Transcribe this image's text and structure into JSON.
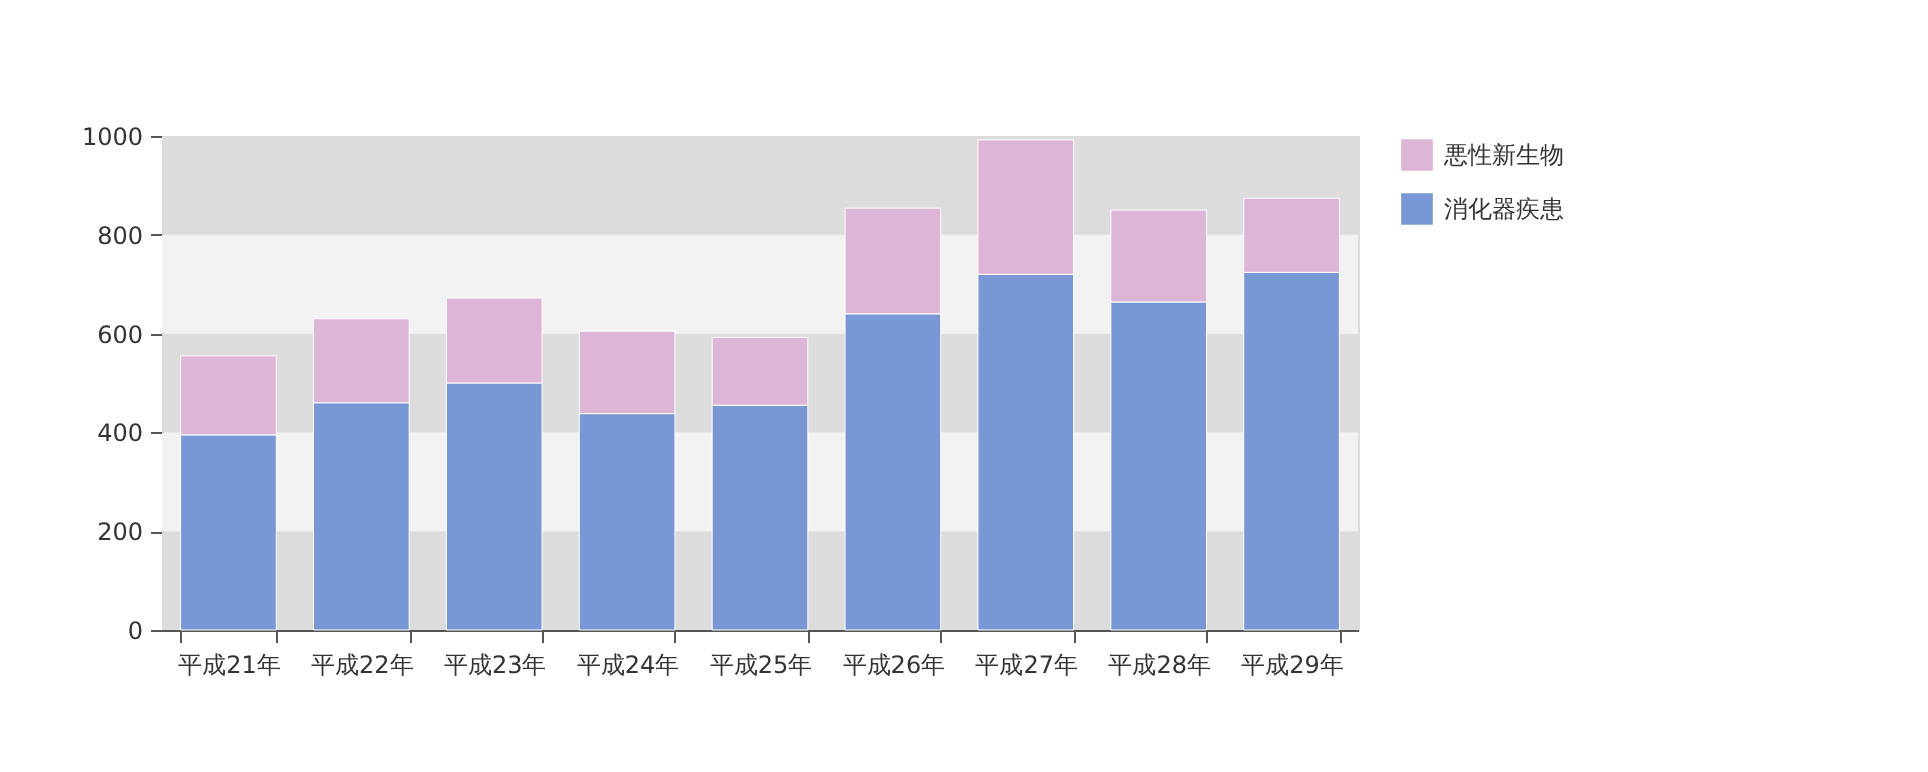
{
  "chart_data": {
    "type": "bar",
    "stacked": true,
    "categories": [
      "平成21年",
      "平成22年",
      "平成23年",
      "平成24年",
      "平成25年",
      "平成26年",
      "平成27年",
      "平成28年",
      "平成29年"
    ],
    "series": [
      {
        "name": "消化器疾患",
        "color": "#7897d4",
        "values": [
          395,
          460,
          500,
          438,
          455,
          640,
          720,
          664,
          724
        ]
      },
      {
        "name": "悪性新生物",
        "color": "#ddb5d6",
        "values": [
          160,
          170,
          172,
          167,
          137,
          214,
          272,
          186,
          150
        ]
      }
    ],
    "ylim": [
      0,
      1000
    ],
    "yticks": [
      0,
      200,
      400,
      600,
      800,
      1000
    ],
    "grid": false,
    "legend": "right",
    "bands": [
      {
        "axis": "y",
        "from": 0,
        "to": 200,
        "color": "#dcdcdc"
      },
      {
        "axis": "y",
        "from": 200,
        "to": 400,
        "color": "#f2f2f2"
      },
      {
        "axis": "y",
        "from": 400,
        "to": 600,
        "color": "#dcdcdc"
      },
      {
        "axis": "y",
        "from": 600,
        "to": 800,
        "color": "#f2f2f2"
      },
      {
        "axis": "y",
        "from": 800,
        "to": 1000,
        "color": "#dcdcdc"
      }
    ]
  }
}
